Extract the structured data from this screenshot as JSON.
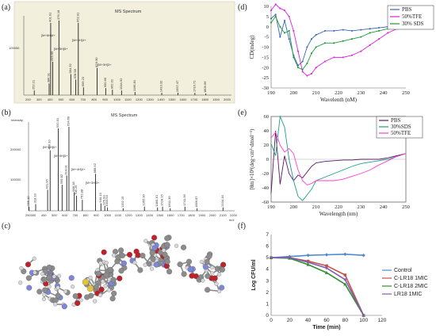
{
  "panel_labels": [
    "(a)",
    "(b)",
    "(c)",
    "(d)",
    "(e)",
    "(f)"
  ],
  "colors": {
    "pbs": "#3a66b5",
    "tfe": "#e020e0",
    "sds": "#1f9a3a",
    "e_pbs": "#5a1a6a",
    "e_sds": "#1aa08a",
    "e_tfe": "#ff3fd0",
    "control": "#4f8ad1",
    "clr18_1": "#c8504d",
    "clr18_2": "#2f8f2f",
    "lr18_1": "#7d5eab"
  },
  "chart_data": [
    {
      "panel": "a",
      "type": "bar",
      "title": "MS Spectrum",
      "y_tick": "100000",
      "x_ticks": [
        "200",
        "300",
        "400",
        "500",
        "600",
        "700",
        "800",
        "900",
        "1000",
        "1100",
        "1200",
        "1300",
        "1400",
        "1500",
        "1600",
        "1700",
        "1800",
        "1900",
        "2000"
      ],
      "x": [
        252,
        387,
        401,
        420,
        476,
        584,
        629,
        652,
        699,
        823,
        901,
        962,
        1045,
        1167,
        1410,
        1557,
        1711,
        1810
      ],
      "values": [
        0.06,
        0.15,
        0.93,
        0.43,
        0.96,
        0.27,
        0.2,
        0.93,
        0.1,
        0.35,
        0.09,
        0.07,
        0.06,
        0.04,
        0.03,
        0.03,
        0.03,
        0.02
      ],
      "annotations": [
        "[M+6H]6+",
        "[M+5H]5+",
        "[M+4H]4+",
        "[M+3H]3+"
      ],
      "peak_labels": [
        "252.21",
        "386.91",
        "401.01",
        "419.99",
        "476.18",
        "584.32",
        "628.58",
        "652.01",
        "699.23",
        "823.30",
        "900.66",
        "962.01",
        "1044.92",
        "1166.81",
        "1410.32",
        "1557.47",
        "1710.71",
        "1809.66"
      ]
    },
    {
      "panel": "b",
      "type": "bar",
      "title": "MS Spectrum",
      "ylabel": "Intensity",
      "xlabel": "m/z",
      "y_ticks": [
        "100000",
        "200000"
      ],
      "x_ticks": [
        "250",
        "300",
        "400",
        "500",
        "600",
        "700",
        "800",
        "900",
        "1000",
        "1100",
        "1200",
        "1300",
        "1400",
        "1500",
        "1600",
        "1700",
        "1800",
        "1900",
        "2000",
        "2100",
        "2200"
      ],
      "x": [
        255,
        318,
        432,
        456,
        533,
        570,
        614,
        635,
        686,
        708,
        763,
        889,
        940,
        977,
        1003,
        1152,
        1355,
        1480,
        1528,
        1601,
        1741,
        1857,
        2104
      ],
      "values": [
        0.05,
        0.08,
        0.25,
        0.72,
        0.98,
        0.31,
        0.42,
        1.0,
        0.22,
        0.18,
        0.13,
        0.44,
        0.09,
        0.06,
        0.04,
        0.03,
        0.05,
        0.04,
        0.05,
        0.03,
        0.05,
        0.03,
        0.04
      ],
      "annotations": [
        "[M+6H]6+",
        "[M+5H]5+",
        "[M+4H]4+",
        "[M+3H]3+"
      ],
      "peak_labels": [
        "255.10",
        "318.33",
        "431.95",
        "456.10",
        "532.91",
        "569.82",
        "614.01",
        "634.69",
        "686.18",
        "708.25",
        "762.88",
        "888.52",
        "940.13",
        "976.93",
        "1003.54",
        "1152.15",
        "1355.30",
        "1480.10",
        "1528.15",
        "1601.39",
        "1741.36",
        "1856.87",
        "2104.16"
      ]
    },
    {
      "panel": "d",
      "type": "line",
      "ylabel": "CD(mdeg)",
      "xlabel": "Wavelenth (nM)",
      "xlim": [
        190,
        250
      ],
      "ylim": [
        -30,
        10
      ],
      "x_ticks": [
        190,
        200,
        210,
        220,
        230,
        240,
        250
      ],
      "y_ticks": [
        10,
        5,
        0,
        -5,
        -10,
        -15,
        -20,
        -25,
        -30
      ],
      "series": [
        {
          "name": "PBS",
          "x": [
            190,
            192,
            194,
            196,
            198,
            200,
            202,
            204,
            206,
            208,
            210,
            214,
            218,
            222,
            226,
            230,
            234,
            238,
            242,
            246,
            250
          ],
          "values": [
            4,
            6,
            -5,
            3,
            -6,
            -14,
            -19,
            -17,
            -10,
            -6,
            -4,
            -2,
            -2,
            -1.5,
            -2,
            -1.5,
            -1,
            -0.5,
            0,
            0,
            0
          ]
        },
        {
          "name": "50%TFE",
          "x": [
            190,
            192,
            194,
            196,
            198,
            200,
            202,
            204,
            206,
            208,
            210,
            214,
            218,
            222,
            226,
            230,
            234,
            238,
            242,
            246,
            250
          ],
          "values": [
            8,
            11,
            9,
            8,
            5,
            -2,
            -12,
            -22,
            -24,
            -23,
            -20,
            -17,
            -15,
            -15,
            -14,
            -12,
            -9,
            -6,
            -3,
            -1,
            0
          ]
        },
        {
          "name": "30% SDS",
          "x": [
            190,
            192,
            194,
            196,
            198,
            200,
            202,
            204,
            206,
            208,
            210,
            214,
            218,
            222,
            226,
            230,
            234,
            238,
            242,
            246,
            250
          ],
          "values": [
            2,
            5,
            0,
            -3,
            -2,
            -15,
            -20,
            -21,
            -18,
            -13,
            -10,
            -8,
            -8,
            -7,
            -6,
            -5,
            -3,
            -2,
            -1,
            0,
            0
          ]
        }
      ]
    },
    {
      "panel": "e",
      "type": "line",
      "ylabel": "[θm]×10³(deg·cm²·dmol⁻¹)",
      "xlabel": "Wavelength (nm)",
      "xlim": [
        190,
        250
      ],
      "ylim": [
        -60,
        60
      ],
      "x_ticks": [
        190,
        200,
        210,
        220,
        230,
        240,
        250
      ],
      "y_ticks": [
        60,
        40,
        20,
        0,
        -20,
        -40,
        -60
      ],
      "series": [
        {
          "name": "PBS",
          "x": [
            190,
            192,
            194,
            196,
            198,
            200,
            202,
            204,
            206,
            208,
            210,
            214,
            218,
            222,
            226,
            230,
            234,
            238,
            242,
            246,
            250
          ],
          "values": [
            -48,
            40,
            -35,
            5,
            -20,
            -30,
            -22,
            -26,
            -18,
            -10,
            -5,
            -3,
            -2,
            -1,
            -1,
            0,
            0,
            0,
            2,
            5,
            8
          ]
        },
        {
          "name": "30%SDS",
          "x": [
            190,
            192,
            194,
            196,
            198,
            200,
            202,
            204,
            206,
            208,
            210,
            214,
            218,
            222,
            226,
            230,
            234,
            238,
            242,
            246,
            250
          ],
          "values": [
            22,
            5,
            60,
            45,
            0,
            -30,
            -52,
            -58,
            -50,
            -42,
            -30,
            -25,
            -20,
            -15,
            -10,
            -6,
            -4,
            -2,
            0,
            4,
            8
          ]
        },
        {
          "name": "50%TFE",
          "x": [
            190,
            192,
            194,
            196,
            198,
            200,
            202,
            204,
            206,
            208,
            210,
            214,
            218,
            222,
            226,
            230,
            234,
            238,
            242,
            246,
            250
          ],
          "values": [
            30,
            38,
            20,
            10,
            15,
            8,
            -15,
            -30,
            -36,
            -34,
            -30,
            -30,
            -30,
            -28,
            -24,
            -20,
            -15,
            -8,
            -2,
            4,
            8
          ]
        }
      ]
    },
    {
      "panel": "f",
      "type": "line",
      "ylabel": "Log CFU/ml",
      "xlabel": "Time (min)",
      "xlim": [
        0,
        120
      ],
      "ylim": [
        0,
        7
      ],
      "x_ticks": [
        0,
        20,
        40,
        60,
        80,
        100,
        120
      ],
      "y_ticks": [
        0,
        1,
        2,
        3,
        4,
        5,
        6,
        7
      ],
      "legend_position": "right",
      "series": [
        {
          "name": "Control",
          "x": [
            0,
            20,
            40,
            60,
            80,
            100
          ],
          "values": [
            5.0,
            5.1,
            5.2,
            5.25,
            5.3,
            5.2
          ]
        },
        {
          "name": "C-LR18 1MIC",
          "x": [
            0,
            20,
            40,
            60,
            80,
            100
          ],
          "values": [
            5.0,
            5.0,
            4.7,
            4.3,
            3.5,
            0
          ]
        },
        {
          "name": "C-LR18 2MIC",
          "x": [
            0,
            20,
            40,
            60,
            80,
            100
          ],
          "values": [
            5.0,
            4.95,
            4.4,
            3.7,
            2.7,
            0
          ]
        },
        {
          "name": "LR18 1MIC",
          "x": [
            0,
            20,
            40,
            60,
            80,
            100
          ],
          "values": [
            5.0,
            5.0,
            4.6,
            4.1,
            3.1,
            0
          ]
        }
      ]
    }
  ]
}
